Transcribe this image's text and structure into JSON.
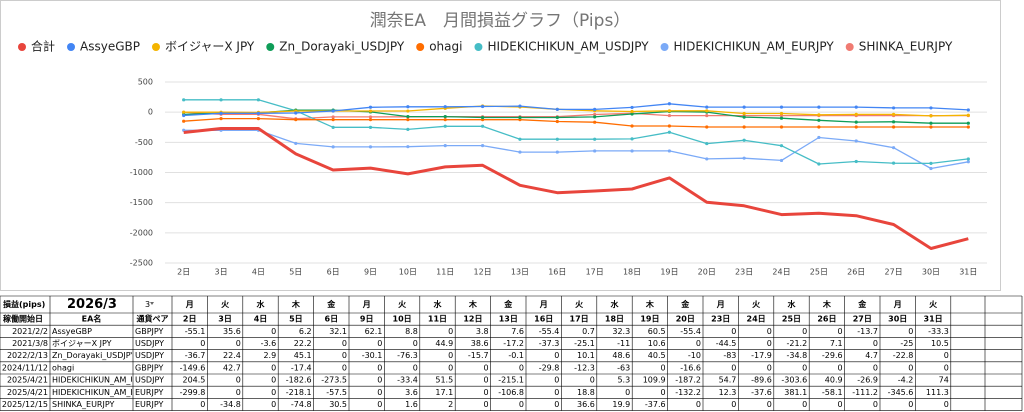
{
  "chart_data": {
    "type": "line",
    "title": "潤奈EA　月間損益グラフ（Pips）",
    "categories": [
      "2日",
      "3日",
      "4日",
      "5日",
      "6日",
      "9日",
      "10日",
      "11日",
      "12日",
      "13日",
      "16日",
      "17日",
      "18日",
      "19日",
      "20日",
      "23日",
      "24日",
      "25日",
      "26日",
      "27日",
      "30日",
      "31日"
    ],
    "series": [
      {
        "name": "合計",
        "color": "#e8453c",
        "values": [
          -336.7,
          -270.8,
          -271.5,
          -690.9,
          -959.3,
          -927.3,
          -1023,
          -907.5,
          -880.8,
          -1212.4,
          -1334.9,
          -1306.1,
          -1274,
          -1090.1,
          -1491.5,
          -1552,
          -1697.1,
          -1675.6,
          -1715.3,
          -1862.4,
          -2260,
          -2097.5
        ]
      },
      {
        "name": "AssyeGBP",
        "color": "#4285f4",
        "values": [
          -55.1,
          -19.5,
          -19.5,
          -13.3,
          18.8,
          80.9,
          89.7,
          89.7,
          93.5,
          101.1,
          45.7,
          46.4,
          78.7,
          139.2,
          83.8,
          83.8,
          83.8,
          83.8,
          83.8,
          70.1,
          70.1,
          36.8
        ]
      },
      {
        "name": "ボイジャーX JPY",
        "color": "#f4b400",
        "values": [
          0,
          0,
          -3.6,
          18.6,
          18.6,
          18.6,
          18.6,
          63.5,
          102.1,
          84.9,
          47.6,
          22.5,
          11.5,
          22.1,
          22.1,
          -22.4,
          -22.4,
          -43.6,
          -36.5,
          -36.5,
          -61.5,
          -51
        ]
      },
      {
        "name": "Zn_Dorayaki_USDJPY",
        "color": "#0f9d58",
        "values": [
          -36.7,
          -14.3,
          -11.4,
          33.7,
          33.7,
          3.6,
          -72.7,
          -72.7,
          -88.4,
          -88.5,
          -88.5,
          -78.4,
          -29.8,
          10.7,
          0.7,
          -82.3,
          -100.2,
          -135,
          -164.6,
          -159.9,
          -182.7,
          -182.7
        ]
      },
      {
        "name": "ohagi",
        "color": "#ff6d00",
        "values": [
          -149.6,
          -106.9,
          -106.9,
          -124.3,
          -124.3,
          -124.3,
          -124.3,
          -124.3,
          -124.3,
          -124.3,
          -154.1,
          -166.4,
          -229.4,
          -229.4,
          -246,
          -246,
          -246,
          -246,
          -246,
          -246,
          -246,
          -246
        ]
      },
      {
        "name": "HIDEKICHIKUN_AM_USDJPY",
        "color": "#46bdc6",
        "values": [
          204.5,
          204.5,
          204.5,
          21.9,
          -251.6,
          -251.6,
          -285,
          -233.5,
          -233.5,
          -448.6,
          -448.6,
          -448.6,
          -443.3,
          -333.4,
          -520.6,
          -465.9,
          -555.5,
          -859.1,
          -818.2,
          -845.1,
          -849.3,
          -775.3
        ]
      },
      {
        "name": "HIDEKICHIKUN_AM_EURJPY",
        "color": "#7baaf7",
        "values": [
          -299.8,
          -299.8,
          -299.8,
          -517.9,
          -575.4,
          -575.4,
          -571.8,
          -554.7,
          -554.7,
          -661.5,
          -661.5,
          -642.7,
          -642.7,
          -642.7,
          -774.9,
          -762.6,
          -800.2,
          -419.1,
          -477.2,
          -588.4,
          -934,
          -822.7
        ]
      },
      {
        "name": "SHINKA_EURJPY",
        "color": "#f07b72",
        "values": [
          0,
          -34.8,
          -34.8,
          -109.6,
          -79.1,
          -79.1,
          -77.5,
          -75.5,
          -75.5,
          -75.5,
          -75.5,
          -38.9,
          -19,
          -56.6,
          -56.6,
          -56.6,
          -56.6,
          -56.6,
          -56.6,
          -56.6,
          -56.6,
          -56.6
        ]
      }
    ],
    "ylim": [
      -2500,
      500
    ],
    "yticks": [
      500,
      0,
      -500,
      -1000,
      -1500,
      -2000,
      -2500
    ],
    "grid": true,
    "legend": "top"
  },
  "table": {
    "label": "損益(pips)",
    "period": "2026/3",
    "month_select": "3",
    "weekdays": [
      "月",
      "火",
      "水",
      "木",
      "金",
      "月",
      "火",
      "水",
      "木",
      "金",
      "月",
      "火",
      "水",
      "木",
      "金",
      "月",
      "火",
      "水",
      "木",
      "金",
      "月",
      "火"
    ],
    "columns": [
      "稼働開始日",
      "EA名",
      "通貨ペア"
    ],
    "rows": [
      {
        "start": "2021/2/2",
        "pair": "GBPJPY",
        "values": [
          -55.1,
          35.6,
          0,
          6.2,
          32.1,
          62.1,
          8.8,
          0,
          3.8,
          7.6,
          -55.4,
          0.7,
          32.3,
          60.5,
          -55.4,
          0,
          0,
          0,
          0,
          -13.7,
          0,
          -33.3
        ]
      },
      {
        "start": "2021/3/8",
        "pair": "USDJPY",
        "values": [
          0,
          0,
          -3.6,
          22.2,
          0,
          0,
          0,
          44.9,
          38.6,
          -17.2,
          -37.3,
          -25.1,
          -11,
          10.6,
          0,
          -44.5,
          0,
          -21.2,
          7.1,
          0,
          -25,
          10.5
        ]
      },
      {
        "start": "2022/2/13",
        "pair": "USDJPY",
        "values": [
          -36.7,
          22.4,
          2.9,
          45.1,
          0,
          -30.1,
          -76.3,
          0,
          -15.7,
          -0.1,
          0,
          10.1,
          48.6,
          40.5,
          -10,
          -83,
          -17.9,
          -34.8,
          -29.6,
          4.7,
          -22.8,
          0
        ]
      },
      {
        "start": "2024/11/12",
        "pair": "GBPJPY",
        "values": [
          -149.6,
          42.7,
          0,
          -17.4,
          0,
          0,
          0,
          0,
          0,
          0,
          -29.8,
          -12.3,
          -63,
          0,
          -16.6,
          0,
          0,
          0,
          0,
          0,
          0,
          0
        ]
      },
      {
        "start": "2025/4/21",
        "pair": "USDJPY",
        "values": [
          204.5,
          0,
          0,
          -182.6,
          -273.5,
          0,
          -33.4,
          51.5,
          0,
          -215.1,
          0,
          0,
          5.3,
          109.9,
          -187.2,
          54.7,
          -89.6,
          -303.6,
          40.9,
          -26.9,
          -4.2,
          74
        ]
      },
      {
        "start": "2025/4/21",
        "pair": "EURJPY",
        "values": [
          -299.8,
          0,
          0,
          -218.1,
          -57.5,
          0,
          3.6,
          17.1,
          0,
          -106.8,
          0,
          18.8,
          0,
          0,
          -132.2,
          12.3,
          -37.6,
          381.1,
          -58.1,
          -111.2,
          -345.6,
          111.3
        ]
      },
      {
        "start": "2025/12/15",
        "pair": "EURJPY",
        "values": [
          0,
          -34.8,
          0,
          -74.8,
          30.5,
          0,
          1.6,
          2,
          0,
          0,
          0,
          36.6,
          19.9,
          -37.6,
          0,
          0,
          0,
          0,
          0,
          0,
          0,
          0
        ]
      }
    ]
  }
}
